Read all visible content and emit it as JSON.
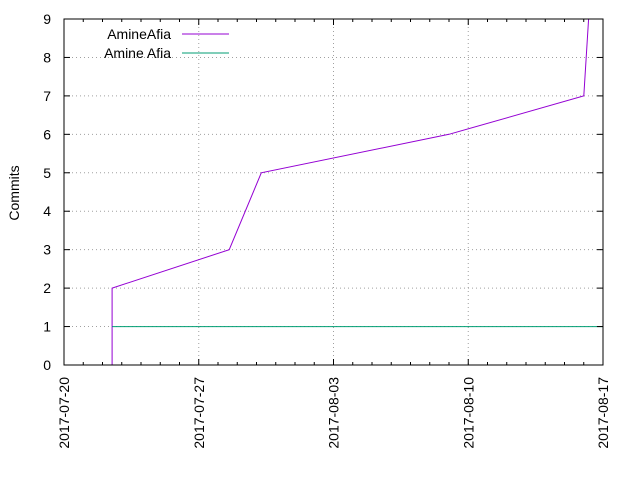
{
  "chart_data": {
    "type": "line",
    "title": "",
    "xlabel": "",
    "ylabel": "Commits",
    "x_axis_type": "date",
    "xlim": [
      "2017-07-20",
      "2017-08-17"
    ],
    "ylim": [
      0,
      9
    ],
    "x_tick_labels": [
      "2017-07-20",
      "2017-07-27",
      "2017-08-03",
      "2017-08-10",
      "2017-08-17"
    ],
    "y_ticks": [
      0,
      1,
      2,
      3,
      4,
      5,
      6,
      7,
      8,
      9
    ],
    "grid": true,
    "legend_position": "top-left",
    "series": [
      {
        "name": "AmineAfia",
        "color": "#9400d3",
        "points": [
          [
            "2017-07-22T12:00",
            0
          ],
          [
            "2017-07-22T12:00",
            2
          ],
          [
            "2017-07-28T14:00",
            3
          ],
          [
            "2017-07-30T06:00",
            5
          ],
          [
            "2017-08-09T00:00",
            6
          ],
          [
            "2017-08-16T00:00",
            7
          ],
          [
            "2017-08-16T03:00",
            8
          ],
          [
            "2017-08-16T06:00",
            9
          ]
        ]
      },
      {
        "name": "Amine Afia",
        "color": "#009e73",
        "points": [
          [
            "2017-07-22T12:00",
            1
          ],
          [
            "2017-08-17T00:00",
            1
          ]
        ]
      }
    ]
  }
}
